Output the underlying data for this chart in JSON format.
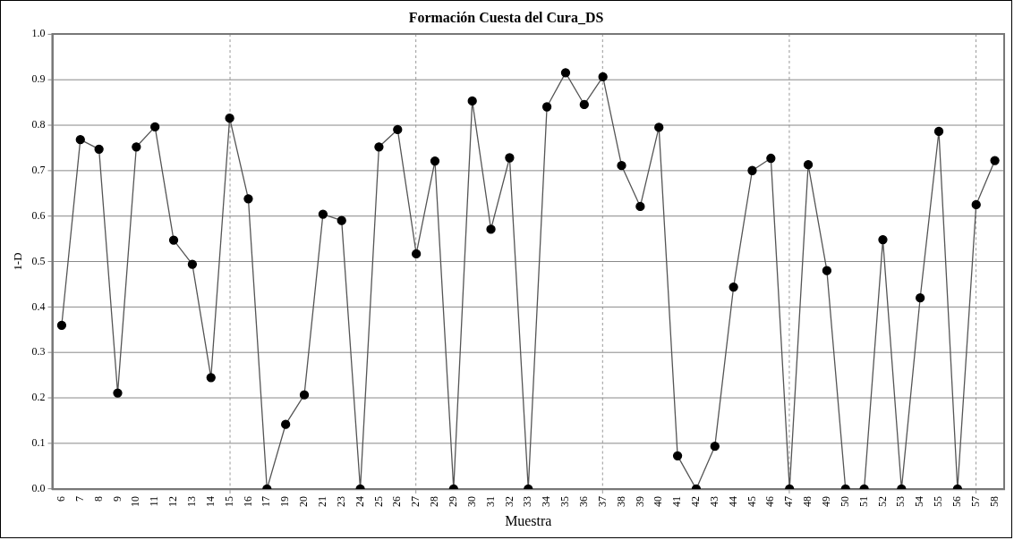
{
  "chart_data": {
    "type": "line",
    "title": "Formación Cuesta del Cura_DS",
    "xlabel": "Muestra",
    "ylabel": "1-D",
    "categories": [
      "6",
      "7",
      "8",
      "9",
      "10",
      "11",
      "12",
      "13",
      "14",
      "15",
      "16",
      "17",
      "19",
      "20",
      "21",
      "23",
      "24",
      "25",
      "26",
      "27",
      "28",
      "29",
      "30",
      "31",
      "32",
      "33",
      "34",
      "35",
      "36",
      "37",
      "38",
      "39",
      "40",
      "41",
      "42",
      "43",
      "44",
      "45",
      "46",
      "47",
      "48",
      "49",
      "50",
      "51",
      "52",
      "53",
      "54",
      "55",
      "56",
      "57",
      "58"
    ],
    "series": [
      {
        "color": "#555555",
        "values": [
          0.36,
          0.768,
          0.747,
          0.211,
          0.752,
          0.796,
          0.547,
          0.494,
          0.245,
          0.815,
          0.638,
          0,
          0.142,
          0.207,
          0.604,
          0.59,
          0,
          0.752,
          0.79,
          0.517,
          0.721,
          0,
          0.853,
          0.571,
          0.728,
          0,
          0.84,
          0.915,
          0.845,
          0.906,
          0.711,
          0.621,
          0.795,
          0.073,
          0,
          0.094,
          0.444,
          0.7,
          0.727,
          0,
          0.713,
          0.48,
          0,
          0,
          0.548,
          0,
          0.42,
          0.786,
          0,
          0.625,
          0.722
        ]
      }
    ],
    "ylim": [
      0,
      1
    ],
    "yticks": [
      {
        "value": 0,
        "label": "0.0"
      },
      {
        "value": 0.1,
        "label": "0.1"
      },
      {
        "value": 0.2,
        "label": "0.2"
      },
      {
        "value": 0.3,
        "label": "0.3"
      },
      {
        "value": 0.4,
        "label": "0.4"
      },
      {
        "value": 0.5,
        "label": "0.5"
      },
      {
        "value": 0.6,
        "label": "0.6"
      },
      {
        "value": 0.7,
        "label": "0.7"
      },
      {
        "value": 0.8,
        "label": "0.8"
      },
      {
        "value": 0.9,
        "label": "0.9"
      },
      {
        "value": 1,
        "label": "1.0"
      }
    ],
    "grid": true,
    "legend": false,
    "marker": "circle",
    "line_style": "solid"
  }
}
